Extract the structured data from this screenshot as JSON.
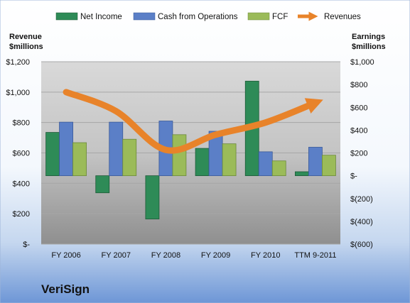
{
  "brand": "VeriSign",
  "colors": {
    "net_income": "#2e8b57",
    "cash_ops": "#5b7fc7",
    "fcf": "#9bbb59",
    "revenues": "#e8832a"
  },
  "chart_data": {
    "type": "bar",
    "categories": [
      "FY 2006",
      "FY 2007",
      "FY 2008",
      "FY 2009",
      "FY 2010",
      "TTM 9-2011"
    ],
    "left_axis": {
      "title_line1": "Revenue",
      "title_line2": "$millions",
      "ylim": [
        0,
        1200
      ],
      "ticks": [
        0,
        200,
        400,
        600,
        800,
        1000,
        1200
      ],
      "tick_labels": [
        "$-",
        "$200",
        "$400",
        "$600",
        "$800",
        "$1,000",
        "$1,200"
      ]
    },
    "right_axis": {
      "title_line1": "Earnings",
      "title_line2": "$millions",
      "ylim": [
        -600,
        1000
      ],
      "ticks": [
        -600,
        -400,
        -200,
        0,
        200,
        400,
        600,
        800,
        1000
      ],
      "tick_labels": [
        "$(600)",
        "$(400)",
        "$(200)",
        "$-",
        "$200",
        "$400",
        "$600",
        "$800",
        "$1,000"
      ]
    },
    "series": [
      {
        "name": "Net Income",
        "type": "bar",
        "axis": "right",
        "values": [
          380,
          -150,
          -380,
          240,
          830,
          35
        ]
      },
      {
        "name": "Cash from Operations",
        "type": "bar",
        "axis": "right",
        "values": [
          470,
          470,
          480,
          390,
          210,
          250
        ]
      },
      {
        "name": "FCF",
        "type": "bar",
        "axis": "right",
        "values": [
          290,
          320,
          360,
          280,
          130,
          180
        ]
      },
      {
        "name": "Revenues",
        "type": "line",
        "axis": "left",
        "values": [
          1000,
          875,
          620,
          720,
          800,
          930
        ]
      }
    ],
    "legend_position": "top",
    "grid": true
  }
}
